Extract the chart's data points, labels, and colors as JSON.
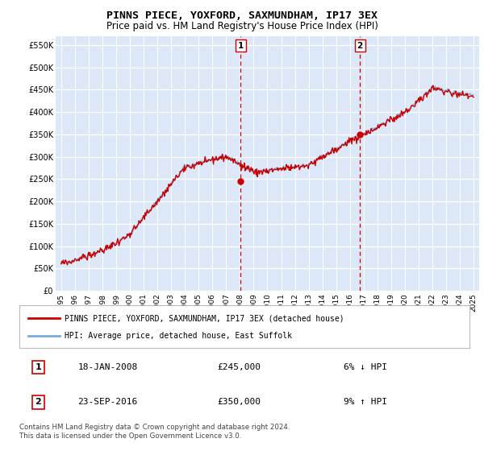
{
  "title": "PINNS PIECE, YOXFORD, SAXMUNDHAM, IP17 3EX",
  "subtitle": "Price paid vs. HM Land Registry's House Price Index (HPI)",
  "ylabel_ticks": [
    "£0",
    "£50K",
    "£100K",
    "£150K",
    "£200K",
    "£250K",
    "£300K",
    "£350K",
    "£400K",
    "£450K",
    "£500K",
    "£550K"
  ],
  "ytick_values": [
    0,
    50000,
    100000,
    150000,
    200000,
    250000,
    300000,
    350000,
    400000,
    450000,
    500000,
    550000
  ],
  "ylim": [
    0,
    570000
  ],
  "xlim_start": 1994.6,
  "xlim_end": 2025.4,
  "xtick_years": [
    1995,
    1996,
    1997,
    1998,
    1999,
    2000,
    2001,
    2002,
    2003,
    2004,
    2005,
    2006,
    2007,
    2008,
    2009,
    2010,
    2011,
    2012,
    2013,
    2014,
    2015,
    2016,
    2017,
    2018,
    2019,
    2020,
    2021,
    2022,
    2023,
    2024,
    2025
  ],
  "hpi_color": "#7aabdc",
  "price_color": "#cc0000",
  "vline_color": "#cc0000",
  "transaction1_year": 2008.05,
  "transaction1_price": 245000,
  "transaction1_label": "1",
  "transaction2_year": 2016.73,
  "transaction2_price": 350000,
  "transaction2_label": "2",
  "legend_line1": "PINNS PIECE, YOXFORD, SAXMUNDHAM, IP17 3EX (detached house)",
  "legend_line2": "HPI: Average price, detached house, East Suffolk",
  "table_row1": [
    "1",
    "18-JAN-2008",
    "£245,000",
    "6% ↓ HPI"
  ],
  "table_row2": [
    "2",
    "23-SEP-2016",
    "£350,000",
    "9% ↑ HPI"
  ],
  "footnote": "Contains HM Land Registry data © Crown copyright and database right 2024.\nThis data is licensed under the Open Government Licence v3.0.",
  "plot_background": "#dce8f8",
  "grid_color": "#ffffff",
  "title_fontsize": 9.5,
  "subtitle_fontsize": 8.5
}
